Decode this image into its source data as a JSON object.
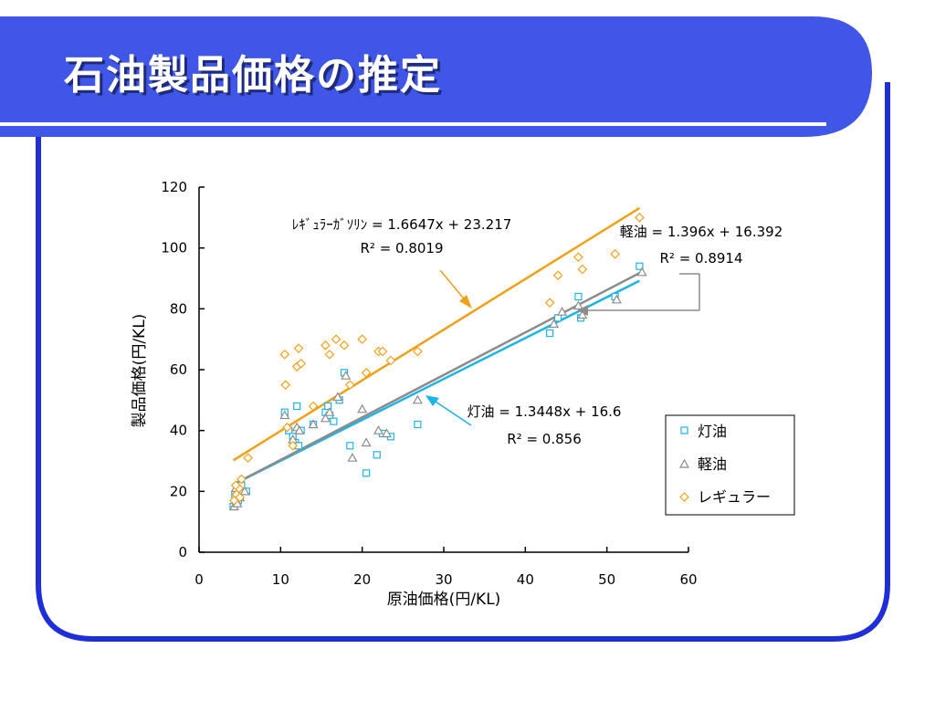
{
  "slide": {
    "title": "石油製品価格の推定",
    "colors": {
      "header": "#3f56e6",
      "border": "#1f2fd8",
      "rule": "#ffffff"
    }
  },
  "chart_data": {
    "type": "scatter",
    "title": "",
    "xlabel": "原油価格(円/KL)",
    "ylabel": "製品価格(円/KL)",
    "xlim": [
      0,
      60
    ],
    "ylim": [
      0,
      120
    ],
    "x_ticks": [
      "0",
      "10",
      "20",
      "30",
      "40",
      "50",
      "60"
    ],
    "y_ticks": [
      "0",
      "20",
      "40",
      "60",
      "80",
      "100",
      "120"
    ],
    "grid": false,
    "legend_position": "bottom-right",
    "series": [
      {
        "name": "灯油",
        "color": "#1bb5e8",
        "marker": "square",
        "points": [
          [
            4.2,
            15
          ],
          [
            4.5,
            16
          ],
          [
            4.8,
            17
          ],
          [
            4.4,
            19
          ],
          [
            5.0,
            20
          ],
          [
            4.6,
            21
          ],
          [
            5.2,
            22
          ],
          [
            5.8,
            20
          ],
          [
            10.5,
            46
          ],
          [
            11.0,
            40
          ],
          [
            11.5,
            38
          ],
          [
            11.8,
            36
          ],
          [
            12.0,
            48
          ],
          [
            12.2,
            35
          ],
          [
            12.5,
            40
          ],
          [
            14.0,
            42
          ],
          [
            15.5,
            46
          ],
          [
            15.8,
            48
          ],
          [
            16.0,
            45
          ],
          [
            16.5,
            43
          ],
          [
            17.2,
            50
          ],
          [
            17.8,
            59
          ],
          [
            18.5,
            35
          ],
          [
            20.5,
            26
          ],
          [
            21.8,
            32
          ],
          [
            22.5,
            39
          ],
          [
            23.5,
            38
          ],
          [
            26.8,
            42
          ],
          [
            43.0,
            72
          ],
          [
            44.0,
            77
          ],
          [
            46.5,
            84
          ],
          [
            46.8,
            77
          ],
          [
            51.0,
            84
          ],
          [
            54.0,
            94
          ]
        ]
      },
      {
        "name": "軽油",
        "color": "#8c8c8c",
        "marker": "triangle",
        "points": [
          [
            4.3,
            15
          ],
          [
            4.7,
            16
          ],
          [
            5.0,
            18
          ],
          [
            5.6,
            20
          ],
          [
            4.5,
            21
          ],
          [
            10.5,
            45
          ],
          [
            11.5,
            37
          ],
          [
            12.0,
            41
          ],
          [
            12.3,
            40
          ],
          [
            14.0,
            42
          ],
          [
            15.5,
            44
          ],
          [
            16.0,
            46
          ],
          [
            17.0,
            51
          ],
          [
            18.0,
            58
          ],
          [
            18.8,
            31
          ],
          [
            20.0,
            47
          ],
          [
            20.5,
            36
          ],
          [
            22.0,
            40
          ],
          [
            23.0,
            39
          ],
          [
            26.8,
            50
          ],
          [
            43.5,
            75
          ],
          [
            44.5,
            79
          ],
          [
            46.5,
            81
          ],
          [
            47.0,
            78
          ],
          [
            51.2,
            83
          ],
          [
            54.3,
            92
          ]
        ]
      },
      {
        "name": "レギュラー",
        "color": "#f0a11a",
        "marker": "diamond",
        "points": [
          [
            4.3,
            17
          ],
          [
            4.6,
            19
          ],
          [
            4.9,
            21
          ],
          [
            5.2,
            24
          ],
          [
            4.5,
            22
          ],
          [
            5.0,
            18
          ],
          [
            6.0,
            31
          ],
          [
            10.5,
            65
          ],
          [
            10.6,
            55
          ],
          [
            10.8,
            41
          ],
          [
            11.5,
            35
          ],
          [
            12.0,
            61
          ],
          [
            12.2,
            67
          ],
          [
            12.5,
            62
          ],
          [
            14.0,
            48
          ],
          [
            15.5,
            68
          ],
          [
            16.0,
            65
          ],
          [
            16.8,
            70
          ],
          [
            17.8,
            68
          ],
          [
            18.5,
            55
          ],
          [
            20.0,
            70
          ],
          [
            20.5,
            59
          ],
          [
            22.0,
            66
          ],
          [
            22.5,
            66
          ],
          [
            23.5,
            63
          ],
          [
            26.8,
            66
          ],
          [
            43.0,
            82
          ],
          [
            44.0,
            91
          ],
          [
            46.5,
            97
          ],
          [
            47.0,
            93
          ],
          [
            51.0,
            98
          ],
          [
            54.0,
            110
          ]
        ]
      }
    ],
    "trendlines": [
      {
        "series": "灯油",
        "color": "#1bb5e8",
        "slope": 1.3448,
        "intercept": 16.6,
        "x_range": [
          4.5,
          54
        ]
      },
      {
        "series": "軽油",
        "color": "#8c8c8c",
        "slope": 1.396,
        "intercept": 16.392,
        "x_range": [
          4.5,
          54
        ]
      },
      {
        "series": "レギュラー",
        "color": "#f0a11a",
        "slope": 1.6647,
        "intercept": 23.217,
        "x_range": [
          4.2,
          54
        ]
      }
    ],
    "annotations": {
      "gasoline": {
        "equation": "ﾚｷﾞｭﾗｰｶﾞｿﾘﾝ = 1.6647x + 23.217",
        "r2": "R² = 0.8019",
        "color": "#f0a11a"
      },
      "diesel": {
        "equation": "軽油 = 1.396x + 16.392",
        "r2": "R² = 0.8914",
        "color": "#8c8c8c"
      },
      "kerosene": {
        "equation": "灯油 = 1.3448x + 16.6",
        "r2": "R² = 0.856",
        "color": "#1bb5e8"
      }
    },
    "legend": [
      "灯油",
      "軽油",
      "レギュラー"
    ]
  }
}
